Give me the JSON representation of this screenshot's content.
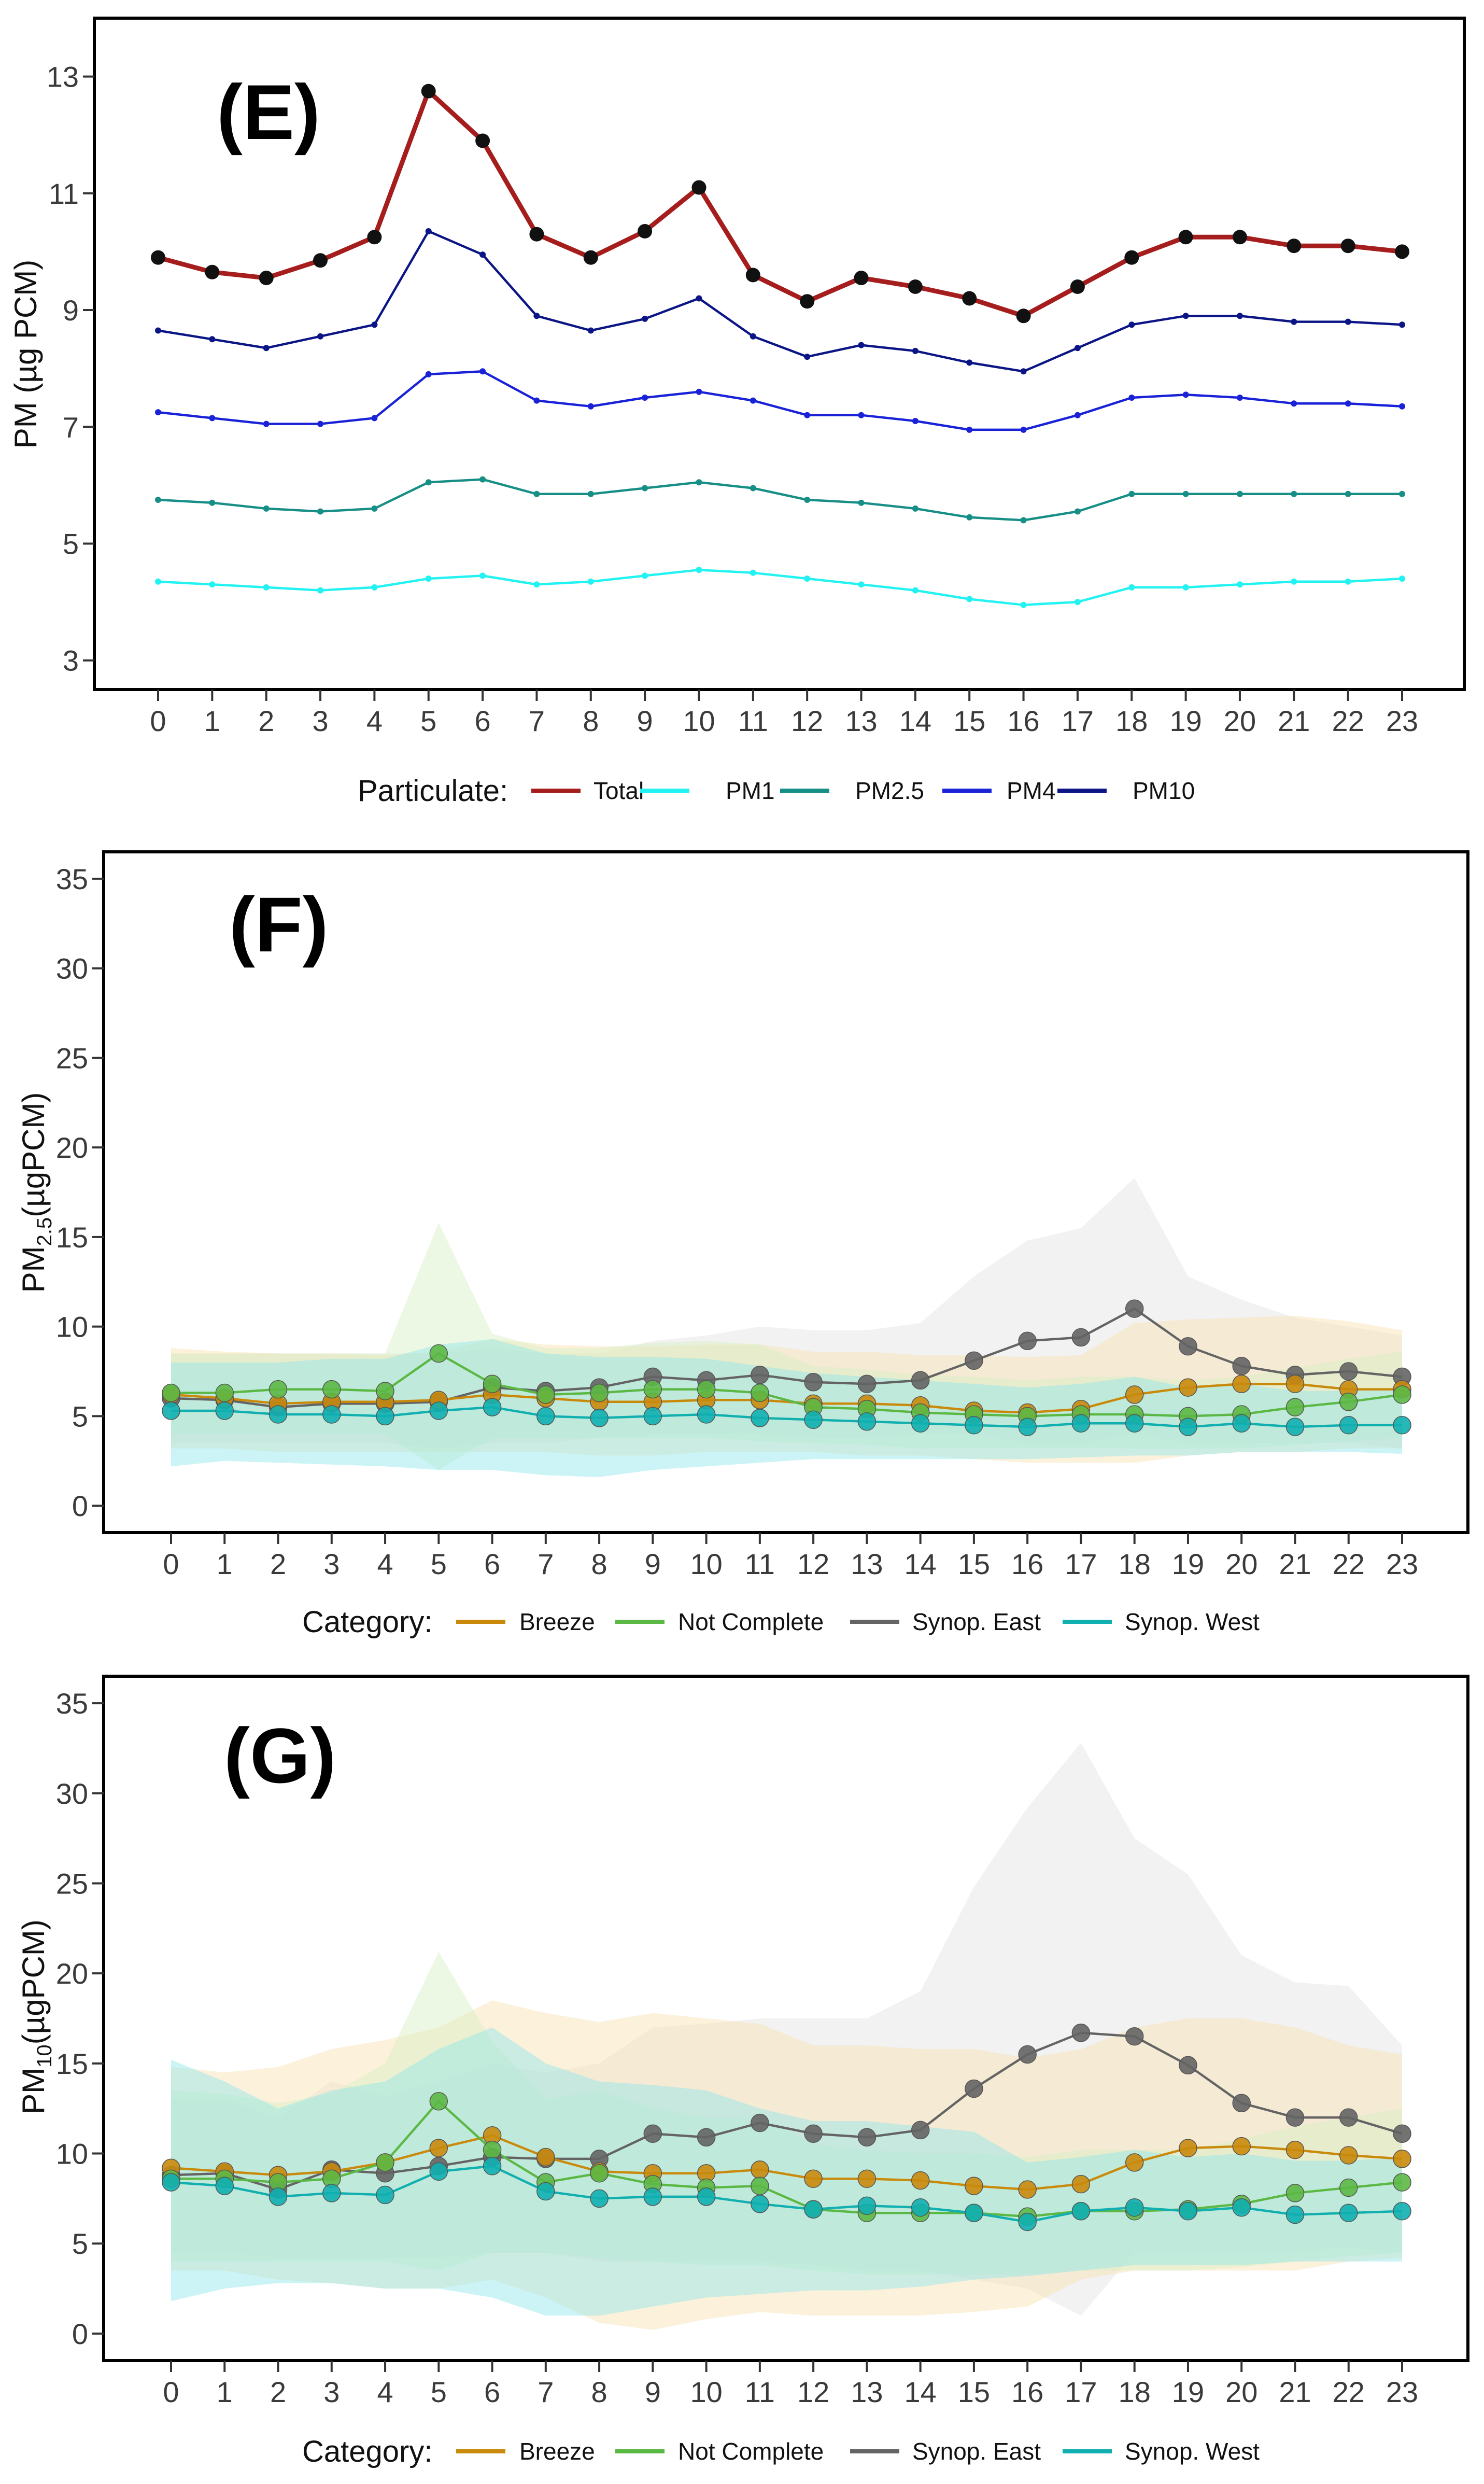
{
  "colors": {
    "Total": "#a51d1d",
    "PM1": "#22f2f2",
    "PM2.5": "#178f86",
    "PM4": "#1a22d8",
    "PM10": "#0b1585",
    "Breeze": "#c98a0c",
    "Not Complete": "#5cb845",
    "Synop. East": "#646464",
    "Synop. West": "#11afb0",
    "Breeze_band": "#f8dfb0",
    "Not Complete_band": "#d8f0c4",
    "Synop. East_band": "#e2e2e2",
    "Synop. West_band": "#8fe6ea"
  },
  "chart_data": [
    {
      "type": "line",
      "panel_label": "(E)",
      "ylabel": "PM (µg PCM)",
      "ylim": [
        2.5,
        14.0
      ],
      "yticks": [
        3,
        5,
        7,
        9,
        11,
        13
      ],
      "x": [
        0,
        1,
        2,
        3,
        4,
        5,
        6,
        7,
        8,
        9,
        10,
        11,
        12,
        13,
        14,
        15,
        16,
        17,
        18,
        19,
        20,
        21,
        22,
        23
      ],
      "legend": {
        "title": "Particulate:",
        "entries": [
          "Total",
          "PM1",
          "PM2.5",
          "PM4",
          "PM10"
        ]
      },
      "series": [
        {
          "name": "Total",
          "values": [
            9.9,
            9.65,
            9.55,
            9.85,
            10.25,
            12.75,
            11.9,
            10.3,
            9.9,
            10.35,
            11.1,
            9.6,
            9.15,
            9.55,
            9.4,
            9.2,
            8.9,
            9.4,
            9.9,
            10.25,
            10.25,
            10.1,
            10.1,
            10.0
          ]
        },
        {
          "name": "PM10",
          "values": [
            8.65,
            8.5,
            8.35,
            8.55,
            8.75,
            10.35,
            9.95,
            8.9,
            8.65,
            8.85,
            9.2,
            8.55,
            8.2,
            8.4,
            8.3,
            8.1,
            7.95,
            8.35,
            8.75,
            8.9,
            8.9,
            8.8,
            8.8,
            8.75
          ]
        },
        {
          "name": "PM4",
          "values": [
            7.25,
            7.15,
            7.05,
            7.05,
            7.15,
            7.9,
            7.95,
            7.45,
            7.35,
            7.5,
            7.6,
            7.45,
            7.2,
            7.2,
            7.1,
            6.95,
            6.95,
            7.2,
            7.5,
            7.55,
            7.5,
            7.4,
            7.4,
            7.35
          ]
        },
        {
          "name": "PM2.5",
          "values": [
            5.75,
            5.7,
            5.6,
            5.55,
            5.6,
            6.05,
            6.1,
            5.85,
            5.85,
            5.95,
            6.05,
            5.95,
            5.75,
            5.7,
            5.6,
            5.45,
            5.4,
            5.55,
            5.85,
            5.85,
            5.85,
            5.85,
            5.85,
            5.85
          ]
        },
        {
          "name": "PM1",
          "values": [
            4.35,
            4.3,
            4.25,
            4.2,
            4.25,
            4.4,
            4.45,
            4.3,
            4.35,
            4.45,
            4.55,
            4.5,
            4.4,
            4.3,
            4.2,
            4.05,
            3.95,
            4.0,
            4.25,
            4.25,
            4.3,
            4.35,
            4.35,
            4.4
          ]
        }
      ]
    },
    {
      "type": "line",
      "panel_label": "(F)",
      "ylabel": "PM2.5(µgPCM)",
      "ylim": [
        -1.5,
        36.5
      ],
      "yticks": [
        0,
        5,
        10,
        15,
        20,
        25,
        30,
        35
      ],
      "x": [
        0,
        1,
        2,
        3,
        4,
        5,
        6,
        7,
        8,
        9,
        10,
        11,
        12,
        13,
        14,
        15,
        16,
        17,
        18,
        19,
        20,
        21,
        22,
        23
      ],
      "legend": {
        "title": "Category:",
        "entries": [
          "Breeze",
          "Not Complete",
          "Synop. East",
          "Synop. West"
        ]
      },
      "series": [
        {
          "name": "Synop. East",
          "values": [
            6.0,
            5.9,
            5.5,
            5.7,
            5.7,
            5.8,
            6.6,
            6.4,
            6.6,
            7.2,
            7.0,
            7.3,
            6.9,
            6.8,
            7.0,
            8.1,
            9.2,
            9.4,
            11.0,
            8.9,
            7.8,
            7.3,
            7.5,
            7.2
          ],
          "band_lower": [
            3.5,
            3.5,
            3.5,
            3.5,
            3.5,
            3.2,
            3.5,
            3.5,
            3.8,
            4.0,
            4.0,
            4.0,
            3.8,
            3.8,
            4.0,
            4.0,
            3.5,
            3.5,
            4.0,
            3.5,
            3.5,
            3.5,
            3.5,
            3.2
          ],
          "band_upper": [
            8.5,
            8.5,
            8.5,
            8.5,
            8.5,
            8.5,
            8.8,
            8.5,
            8.5,
            9.2,
            9.5,
            10.0,
            9.8,
            9.8,
            10.2,
            12.8,
            14.8,
            15.5,
            18.3,
            12.8,
            11.5,
            10.5,
            10.0,
            9.5
          ]
        },
        {
          "name": "Breeze",
          "values": [
            6.2,
            6.0,
            5.7,
            5.8,
            5.8,
            5.9,
            6.2,
            6.0,
            5.8,
            5.8,
            5.9,
            5.9,
            5.7,
            5.7,
            5.6,
            5.3,
            5.2,
            5.4,
            6.2,
            6.6,
            6.8,
            6.8,
            6.5,
            6.5
          ],
          "band_lower": [
            3.2,
            3.2,
            3.0,
            3.0,
            3.0,
            3.0,
            3.0,
            3.0,
            2.8,
            2.8,
            3.0,
            3.0,
            3.0,
            2.8,
            2.8,
            2.6,
            2.4,
            2.4,
            2.4,
            2.8,
            3.0,
            3.0,
            3.2,
            3.2
          ],
          "band_upper": [
            8.8,
            8.6,
            8.5,
            8.5,
            8.4,
            8.6,
            9.3,
            9.0,
            8.9,
            8.9,
            9.0,
            9.0,
            8.6,
            8.6,
            8.4,
            8.4,
            8.3,
            8.4,
            10.2,
            10.4,
            10.5,
            10.6,
            10.3,
            9.8
          ]
        },
        {
          "name": "Not Complete",
          "values": [
            6.3,
            6.3,
            6.5,
            6.5,
            6.4,
            8.5,
            6.8,
            6.2,
            6.3,
            6.5,
            6.5,
            6.3,
            5.5,
            5.4,
            5.2,
            5.1,
            5.0,
            5.1,
            5.1,
            5.0,
            5.1,
            5.5,
            5.8,
            6.2
          ],
          "band_lower": [
            4.0,
            4.0,
            4.0,
            4.0,
            4.0,
            2.0,
            3.8,
            3.8,
            3.8,
            3.8,
            3.8,
            3.6,
            3.5,
            3.4,
            3.2,
            3.2,
            3.2,
            3.2,
            3.2,
            3.2,
            3.2,
            3.4,
            3.6,
            3.8
          ],
          "band_upper": [
            8.5,
            8.5,
            8.5,
            8.5,
            8.5,
            15.8,
            9.6,
            8.8,
            8.8,
            9.1,
            9.2,
            9.0,
            7.8,
            7.6,
            7.3,
            7.2,
            7.0,
            7.2,
            7.2,
            7.0,
            7.2,
            7.7,
            8.2,
            8.6
          ]
        },
        {
          "name": "Synop. West",
          "values": [
            5.3,
            5.3,
            5.1,
            5.1,
            5.0,
            5.3,
            5.5,
            5.0,
            4.9,
            5.0,
            5.1,
            4.9,
            4.8,
            4.7,
            4.6,
            4.5,
            4.4,
            4.6,
            4.6,
            4.4,
            4.6,
            4.4,
            4.5,
            4.5
          ],
          "band_lower": [
            2.2,
            2.5,
            2.4,
            2.3,
            2.2,
            2.0,
            2.0,
            1.7,
            1.6,
            2.0,
            2.2,
            2.4,
            2.6,
            2.6,
            2.6,
            2.6,
            2.6,
            2.7,
            2.8,
            2.8,
            3.0,
            3.0,
            3.0,
            2.9
          ],
          "band_upper": [
            8.0,
            8.0,
            8.0,
            8.2,
            8.2,
            9.0,
            9.3,
            8.5,
            8.3,
            8.3,
            8.2,
            7.8,
            7.4,
            7.2,
            7.0,
            6.8,
            6.6,
            6.8,
            7.2,
            6.6,
            6.8,
            6.4,
            6.4,
            6.6
          ]
        }
      ]
    },
    {
      "type": "line",
      "panel_label": "(G)",
      "ylabel": "PM10(µgPCM)",
      "ylim": [
        -1.5,
        36.5
      ],
      "yticks": [
        0,
        5,
        10,
        15,
        20,
        25,
        30,
        35
      ],
      "x": [
        0,
        1,
        2,
        3,
        4,
        5,
        6,
        7,
        8,
        9,
        10,
        11,
        12,
        13,
        14,
        15,
        16,
        17,
        18,
        19,
        20,
        21,
        22,
        23
      ],
      "legend": {
        "title": "Category:",
        "entries": [
          "Breeze",
          "Not Complete",
          "Synop. East",
          "Synop. West"
        ]
      },
      "series": [
        {
          "name": "Synop. East",
          "values": [
            8.8,
            8.9,
            8.0,
            9.1,
            8.9,
            9.3,
            9.8,
            9.7,
            9.7,
            11.1,
            10.9,
            11.7,
            11.1,
            10.9,
            11.3,
            13.6,
            15.5,
            16.7,
            16.5,
            14.9,
            12.8,
            12.0,
            12.0,
            11.1
          ],
          "band_lower": [
            4.5,
            4.5,
            4.2,
            4.2,
            4.2,
            4.2,
            4.5,
            4.5,
            4.0,
            4.0,
            4.0,
            4.0,
            3.8,
            3.5,
            3.5,
            3.0,
            2.5,
            1.0,
            4.5,
            4.5,
            4.5,
            4.5,
            4.8,
            4.5
          ],
          "band_upper": [
            13.0,
            13.0,
            12.0,
            14.0,
            13.2,
            14.0,
            15.0,
            14.5,
            15.0,
            17.0,
            17.2,
            17.5,
            17.5,
            17.5,
            19.0,
            24.8,
            29.2,
            32.8,
            27.5,
            25.5,
            21.0,
            19.5,
            19.3,
            16.0
          ],
          "band_opacity": 0.45
        },
        {
          "name": "Breeze",
          "values": [
            9.2,
            9.0,
            8.8,
            9.0,
            9.5,
            10.3,
            11.0,
            9.8,
            9.0,
            8.9,
            8.9,
            9.1,
            8.6,
            8.6,
            8.5,
            8.2,
            8.0,
            8.3,
            9.5,
            10.3,
            10.4,
            10.2,
            9.9,
            9.7
          ],
          "band_lower": [
            3.5,
            3.5,
            3.0,
            2.8,
            2.5,
            2.5,
            3.0,
            2.0,
            0.6,
            0.2,
            0.8,
            1.2,
            1.0,
            1.0,
            1.0,
            1.2,
            1.5,
            3.0,
            3.5,
            3.5,
            3.5,
            3.5,
            4.0,
            4.2
          ],
          "band_upper": [
            14.8,
            14.5,
            14.8,
            15.8,
            16.3,
            17.0,
            18.5,
            17.8,
            17.3,
            17.8,
            17.5,
            17.2,
            16.0,
            16.0,
            15.8,
            15.8,
            15.3,
            15.8,
            17.0,
            17.5,
            17.5,
            17.0,
            16.0,
            15.5
          ]
        },
        {
          "name": "Not Complete",
          "values": [
            8.6,
            8.6,
            8.4,
            8.6,
            9.5,
            12.9,
            10.2,
            8.4,
            8.9,
            8.3,
            8.1,
            8.2,
            6.9,
            6.7,
            6.7,
            6.7,
            6.5,
            6.8,
            6.8,
            6.9,
            7.2,
            7.8,
            8.1,
            8.4
          ],
          "band_lower": [
            4.0,
            4.0,
            4.0,
            4.0,
            4.0,
            3.5,
            4.5,
            4.5,
            4.2,
            4.0,
            3.8,
            3.8,
            3.5,
            3.3,
            3.3,
            3.3,
            3.3,
            3.5,
            3.5,
            3.5,
            3.7,
            4.0,
            4.3,
            4.5
          ],
          "band_upper": [
            13.5,
            13.3,
            12.8,
            13.3,
            15.0,
            21.2,
            16.2,
            13.0,
            13.5,
            12.5,
            12.0,
            12.0,
            10.5,
            10.2,
            10.0,
            10.0,
            9.8,
            10.2,
            10.2,
            10.2,
            10.8,
            11.5,
            12.0,
            12.5
          ]
        },
        {
          "name": "Synop. West",
          "values": [
            8.4,
            8.2,
            7.6,
            7.8,
            7.7,
            9.0,
            9.3,
            7.9,
            7.5,
            7.6,
            7.6,
            7.2,
            6.9,
            7.1,
            7.0,
            6.7,
            6.2,
            6.8,
            7.0,
            6.8,
            7.0,
            6.6,
            6.7,
            6.8
          ],
          "band_lower": [
            1.8,
            2.5,
            2.8,
            2.8,
            2.5,
            2.5,
            2.0,
            1.0,
            1.0,
            1.5,
            2.0,
            2.2,
            2.4,
            2.4,
            2.6,
            3.0,
            3.2,
            3.5,
            3.8,
            3.8,
            3.8,
            4.0,
            4.0,
            4.0
          ],
          "band_upper": [
            15.2,
            14.0,
            12.5,
            13.5,
            14.0,
            15.8,
            17.0,
            15.0,
            14.0,
            13.8,
            13.5,
            12.5,
            11.8,
            11.8,
            11.5,
            11.2,
            9.5,
            9.8,
            10.2,
            9.8,
            10.0,
            9.6,
            9.6,
            9.8
          ]
        }
      ]
    }
  ]
}
